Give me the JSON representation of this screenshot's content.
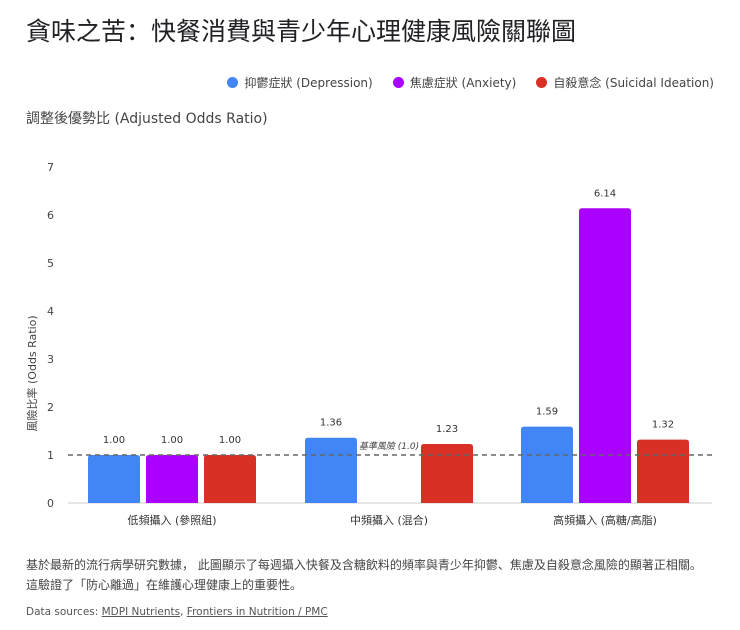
{
  "title": "貪味之苦：快餐消費與青少年心理健康風險關聯圖",
  "subtitle": "調整後優勢比 (Adjusted Odds Ratio)",
  "note_line1": "基於最新的流行病學研究數據， 此圖顯示了每週攝入快餐及含糖飲料的頻率與青少年抑鬱、焦慮及自殺意念風險的顯著正相關。",
  "note_line2": "這驗證了「防心離過」在維護心理健康上的重要性。",
  "sources": {
    "label": "Data sources: ",
    "links": [
      "MDPI Nutrients",
      "Frontiers in Nutrition / PMC"
    ]
  },
  "chart_data": {
    "type": "bar",
    "ylabel": "風險比率 (Odds Ratio)",
    "ylim": [
      0,
      7
    ],
    "yticks": [
      "0",
      "1",
      "2",
      "3",
      "4",
      "5",
      "6",
      "7"
    ],
    "categories": [
      "低頻攝入 (參照組)",
      "中頻攝入 (混合)",
      "高頻攝入 (高糖/高脂)"
    ],
    "series": [
      {
        "name": "抑鬱症狀 (Depression)",
        "color": "#4285f4",
        "values": [
          1.0,
          1.36,
          1.59
        ]
      },
      {
        "name": "焦慮症狀 (Anxiety)",
        "color": "#aa00ff",
        "values": [
          1.0,
          null,
          6.14
        ]
      },
      {
        "name": "自殺意念 (Suicidal Ideation)",
        "color": "#d93025",
        "values": [
          1.0,
          1.23,
          1.32
        ]
      }
    ],
    "reference_line": {
      "value": 1.0,
      "label": "基準風險 (1.0)"
    },
    "legend": "top-right",
    "grid": false
  }
}
